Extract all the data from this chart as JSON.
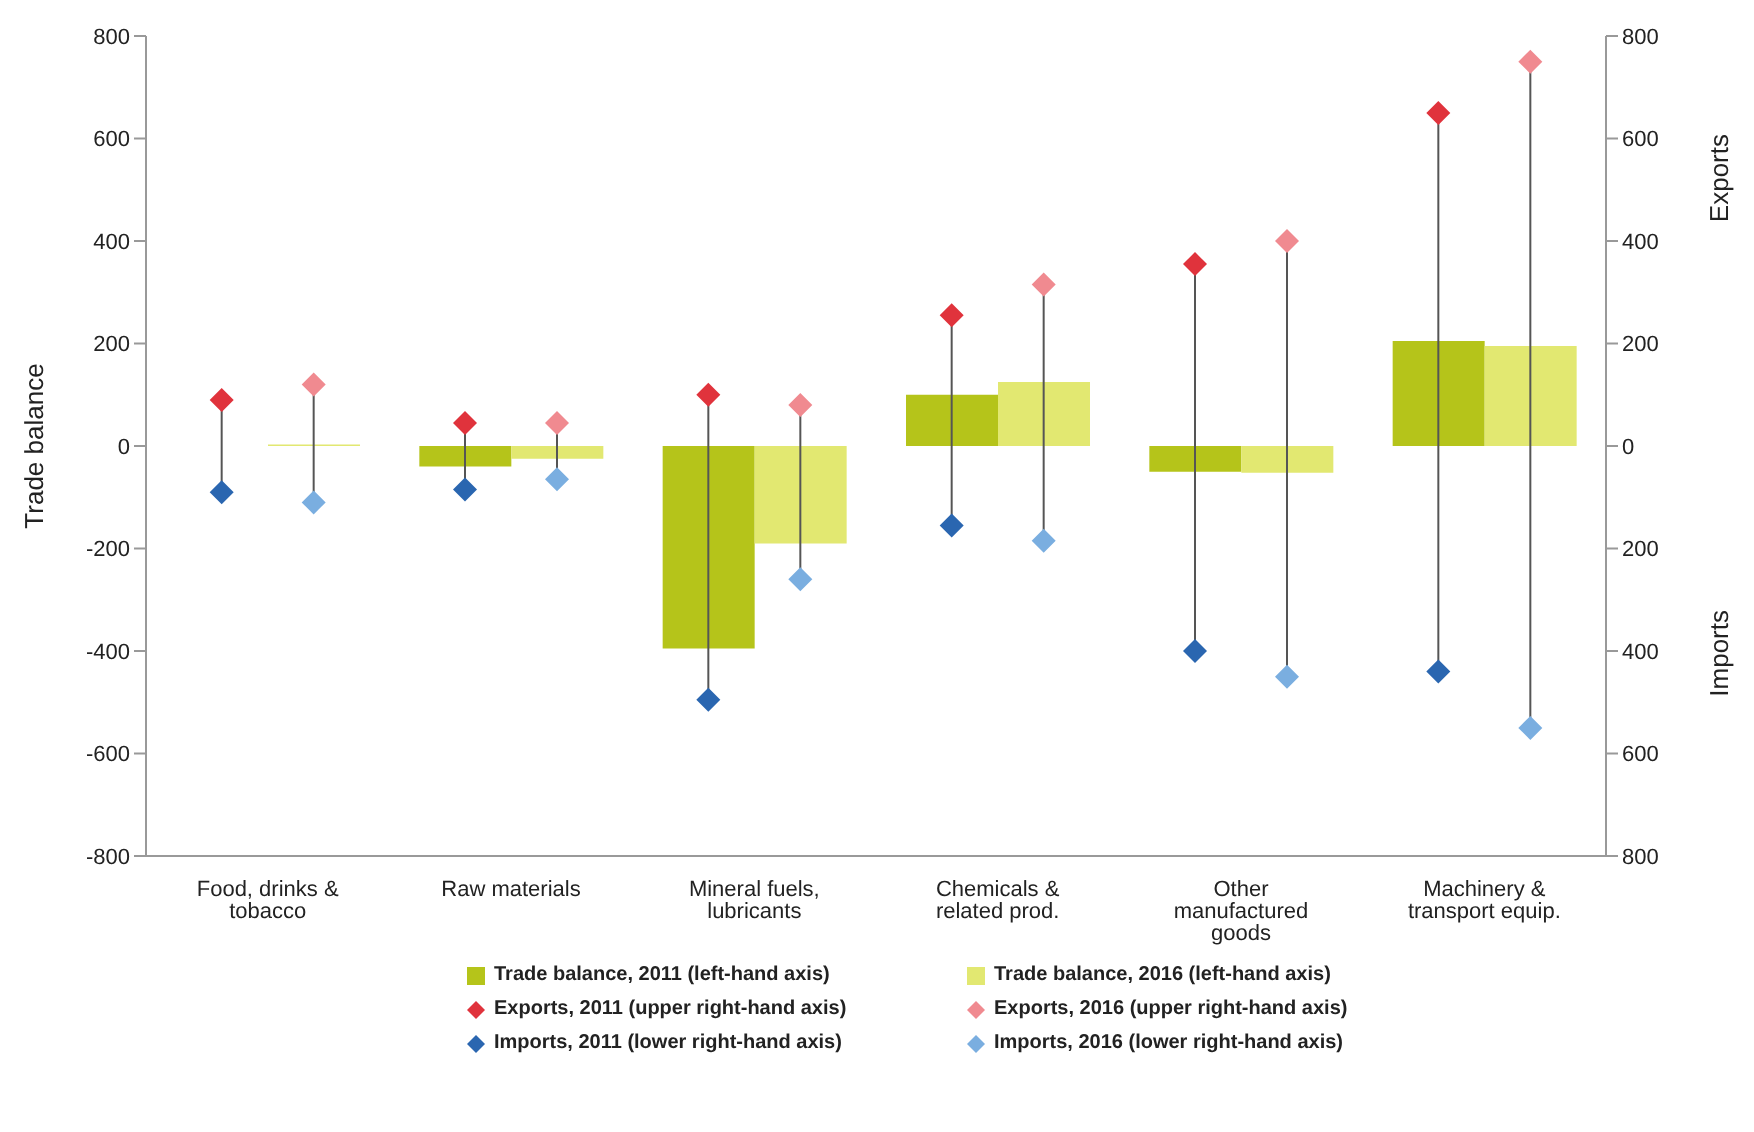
{
  "chart_data": {
    "type": "bar",
    "categories": [
      "Food, drinks & tobacco",
      "Raw materials",
      "Mineral fuels, lubricants",
      "Chemicals & related prod.",
      "Other manufactured goods",
      "Machinery & transport equip."
    ],
    "series": [
      {
        "name": "Trade balance, 2011 (left-hand axis)",
        "color": "#b5c41a",
        "values": [
          0,
          -40,
          -395,
          100,
          -50,
          205
        ]
      },
      {
        "name": "Trade balance, 2016 (left-hand axis)",
        "color": "#e2e871",
        "values": [
          3,
          -25,
          -190,
          125,
          -52,
          195
        ]
      },
      {
        "name": "Exports, 2011 (upper right-hand axis)",
        "type": "scatter",
        "color": "#e0333c",
        "values": [
          90,
          45,
          100,
          255,
          355,
          650
        ]
      },
      {
        "name": "Exports, 2016 (upper right-hand axis)",
        "type": "scatter",
        "color": "#f08a90",
        "values": [
          120,
          45,
          80,
          315,
          400,
          750
        ]
      },
      {
        "name": "Imports, 2011 (lower right-hand axis)",
        "type": "scatter",
        "color": "#2a66b0",
        "values": [
          -90,
          -85,
          -495,
          -155,
          -400,
          -440
        ]
      },
      {
        "name": "Imports, 2016 (lower right-hand axis)",
        "type": "scatter",
        "color": "#7aaee0",
        "values": [
          -110,
          -65,
          -260,
          -185,
          -450,
          -550
        ]
      }
    ],
    "ylabel": "Trade balance",
    "y2label": "Exports",
    "annotations": [
      "Imports"
    ],
    "ylim": [
      -800,
      800
    ],
    "yticks": [
      -800,
      -600,
      -400,
      -200,
      0,
      200,
      400,
      600,
      800
    ],
    "y2lim": [
      -800,
      800
    ],
    "y2ticks": [
      {
        "value": -800,
        "label": "800"
      },
      {
        "value": -600,
        "label": "600"
      },
      {
        "value": -400,
        "label": "400"
      },
      {
        "value": -200,
        "label": "200"
      },
      0,
      200,
      400,
      600,
      800
    ],
    "marker": "diamond",
    "legend": "bottom"
  }
}
